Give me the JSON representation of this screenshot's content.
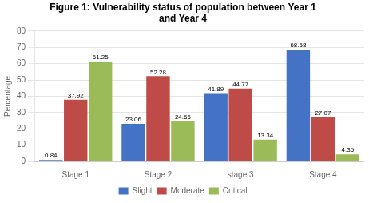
{
  "chart_data": {
    "type": "bar",
    "title": "Figure 1: Vulnerability status of population between Year 1\nand Year 4",
    "categories": [
      "Stage 1",
      "Stage 2",
      "stage 3",
      "Stage 4"
    ],
    "series": [
      {
        "name": "Slight",
        "color": "#4472C4",
        "values": [
          0.84,
          23.06,
          41.89,
          68.58
        ]
      },
      {
        "name": "Moderate",
        "color": "#BE4B48",
        "values": [
          37.92,
          52.28,
          44.77,
          27.07
        ]
      },
      {
        "name": "Critical",
        "color": "#9BBB59",
        "values": [
          61.25,
          24.66,
          13.34,
          4.35
        ]
      }
    ],
    "ylabel": "Percentage",
    "ylim": [
      0,
      80
    ],
    "yticks": [
      0,
      10,
      20,
      30,
      40,
      50,
      60,
      70,
      80
    ],
    "grid": true,
    "legend": "bottom",
    "data_labels": true
  }
}
